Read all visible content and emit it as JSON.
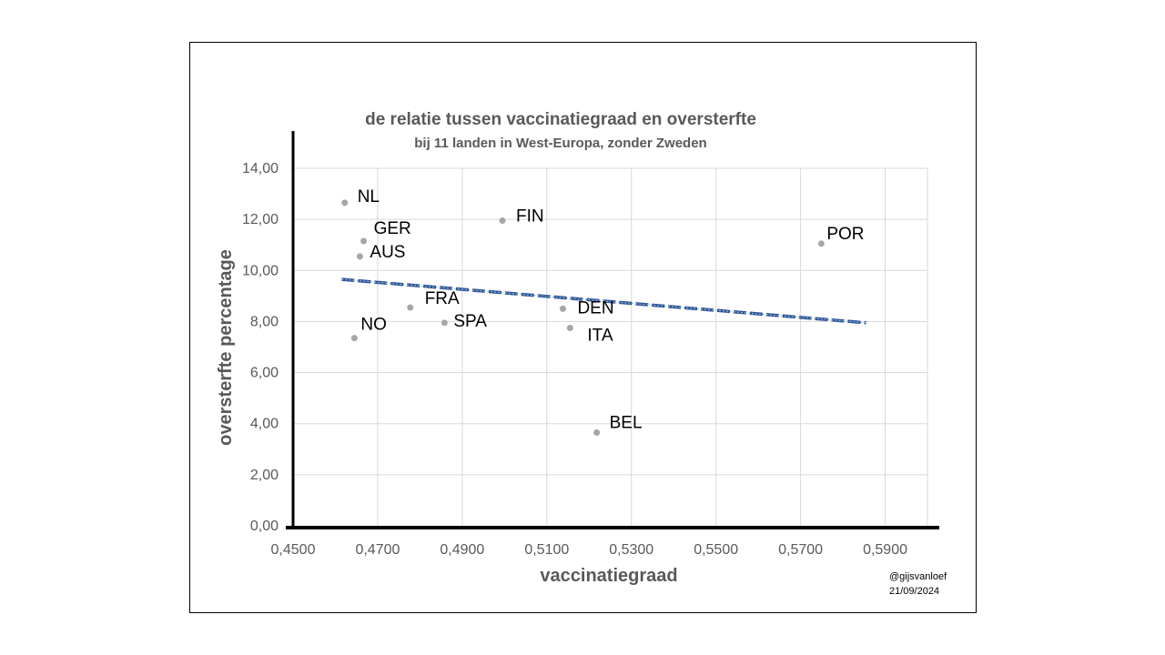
{
  "chart_data": {
    "type": "scatter",
    "title": "de relatie tussen vaccinatiegraad en oversterfte",
    "subtitle": "bij 11 landen in West-Europa, zonder Zweden",
    "xlabel": "vaccinatiegraad",
    "ylabel": "oversterfte percentage",
    "xlim": [
      0.45,
      0.6
    ],
    "ylim": [
      0,
      14
    ],
    "x_ticks": [
      "0,4500",
      "0,4700",
      "0,4900",
      "0,5100",
      "0,5300",
      "0,5500",
      "0,5700",
      "0,5900"
    ],
    "y_ticks": [
      "0,00",
      "2,00",
      "4,00",
      "6,00",
      "8,00",
      "10,00",
      "12,00",
      "14,00"
    ],
    "grid": true,
    "points": [
      {
        "label": "NL",
        "x": 0.4622,
        "y": 12.65
      },
      {
        "label": "GER",
        "x": 0.4667,
        "y": 11.15
      },
      {
        "label": "AUS",
        "x": 0.4658,
        "y": 10.55
      },
      {
        "label": "FRA",
        "x": 0.4777,
        "y": 8.55
      },
      {
        "label": "NO",
        "x": 0.4645,
        "y": 7.35
      },
      {
        "label": "SPA",
        "x": 0.4858,
        "y": 7.95
      },
      {
        "label": "FIN",
        "x": 0.4995,
        "y": 11.95
      },
      {
        "label": "DEN",
        "x": 0.5138,
        "y": 8.5
      },
      {
        "label": "ITA",
        "x": 0.5155,
        "y": 7.75
      },
      {
        "label": "BEL",
        "x": 0.5218,
        "y": 3.65
      },
      {
        "label": "POR",
        "x": 0.5749,
        "y": 11.05
      }
    ],
    "trendline": {
      "x": [
        0.4615,
        0.5855
      ],
      "y": [
        9.65,
        7.95
      ]
    },
    "colors": {
      "point": "#a6a6a6",
      "trend": "#2f5597",
      "grid": "#d9d9d9",
      "axis": "#000000"
    }
  },
  "credit": {
    "handle": "@gijsvanloef",
    "date": "21/09/2024"
  }
}
